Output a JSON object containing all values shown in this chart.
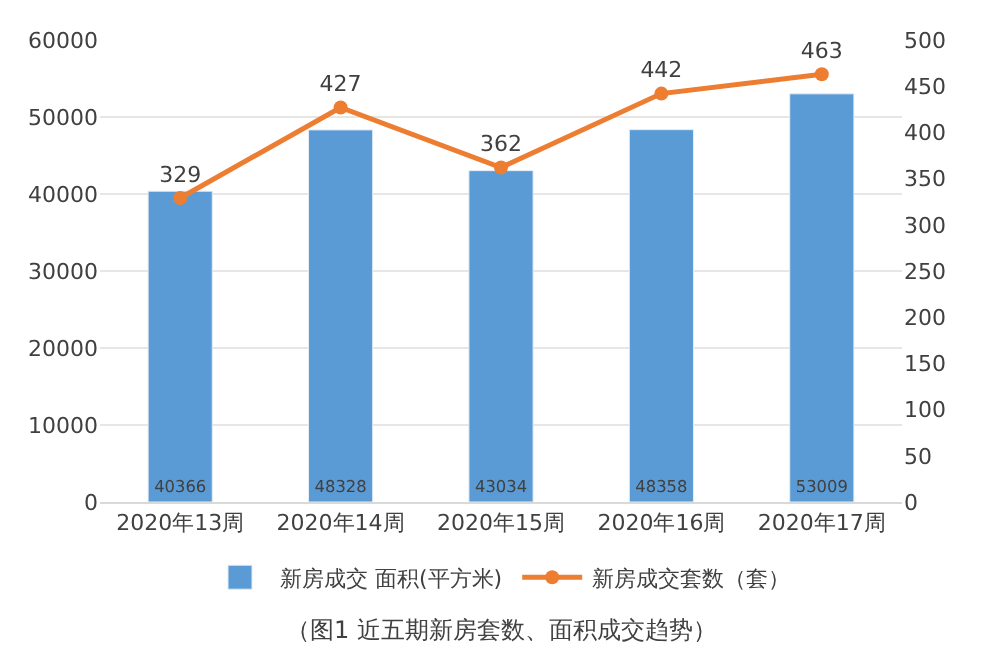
{
  "chart_data": {
    "type": "bar",
    "categories": [
      "2020年13周",
      "2020年14周",
      "2020年15周",
      "2020年16周",
      "2020年17周"
    ],
    "series": [
      {
        "name": "新房成交 面积(平方米)",
        "color": "#5b9bd5",
        "values": [
          40366,
          48328,
          43034,
          48358,
          53009
        ]
      },
      {
        "name": "新房成交套数（套）",
        "type": "line",
        "axis": "y2",
        "color": "#ed7d31",
        "values": [
          329,
          427,
          362,
          442,
          463
        ]
      }
    ],
    "ylim": [
      0,
      60000
    ],
    "yticks": [
      0,
      10000,
      20000,
      30000,
      40000,
      50000,
      60000
    ],
    "y2lim": [
      0,
      500
    ],
    "y2ticks": [
      0,
      50,
      100,
      150,
      200,
      250,
      300,
      350,
      400,
      450,
      500
    ],
    "data_labels": true,
    "grid": "y",
    "legend": "bottom",
    "marker": "circle",
    "annotations": [
      "（图1 近五期新房套数、面积成交趋势）"
    ]
  }
}
